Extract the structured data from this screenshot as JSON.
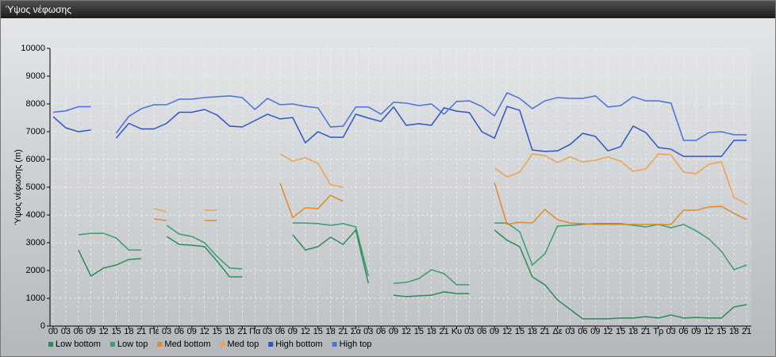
{
  "chart_data": {
    "type": "line",
    "title": "Ύψος νέφωσης",
    "y_label": "Ύψος νέφωσης (m)",
    "categories": [
      "00",
      "03",
      "06",
      "09",
      "12",
      "15",
      "18",
      "21",
      "Πέ",
      "03",
      "06",
      "09",
      "12",
      "15",
      "18",
      "21",
      "Πα",
      "03",
      "06",
      "09",
      "12",
      "15",
      "18",
      "21",
      "Σά",
      "03",
      "06",
      "09",
      "12",
      "15",
      "18",
      "21",
      "Κυ",
      "03",
      "06",
      "09",
      "12",
      "15",
      "18",
      "21",
      "Δε",
      "03",
      "06",
      "09",
      "12",
      "15",
      "18",
      "21",
      "Τρ",
      "03",
      "06",
      "09",
      "12",
      "15",
      "18",
      "21"
    ],
    "ylim": [
      0,
      10000
    ],
    "yticks": [
      0,
      1000,
      2000,
      3000,
      4000,
      5000,
      6000,
      7000,
      8000,
      9000,
      10000
    ],
    "grid": true,
    "series": [
      {
        "name": "Low bottom",
        "color": "#2e8b57",
        "values": [
          null,
          null,
          2740,
          1800,
          2090,
          2200,
          2400,
          2430,
          null,
          3230,
          2940,
          2910,
          2860,
          2340,
          1770,
          1770,
          null,
          null,
          null,
          3290,
          2740,
          2860,
          3200,
          2940,
          3460,
          1540,
          null,
          1110,
          1060,
          1090,
          1110,
          1230,
          1170,
          1170,
          null,
          3460,
          3090,
          2860,
          1770,
          1490,
          940,
          600,
          260,
          260,
          260,
          290,
          290,
          340,
          290,
          400,
          290,
          310,
          290,
          290,
          690,
          770
        ]
      },
      {
        "name": "Low top",
        "color": "#3a9e6a",
        "values": [
          null,
          null,
          3290,
          3340,
          3340,
          3170,
          2740,
          2740,
          null,
          3630,
          3310,
          3230,
          3000,
          2510,
          2090,
          2060,
          null,
          null,
          null,
          3710,
          3710,
          3690,
          3630,
          3690,
          3570,
          1800,
          null,
          1540,
          1570,
          1710,
          2030,
          1890,
          1490,
          1490,
          null,
          3710,
          3710,
          3400,
          2200,
          2600,
          3600,
          3630,
          3660,
          3690,
          3690,
          3690,
          3630,
          3570,
          3660,
          3540,
          3660,
          3430,
          3140,
          2690,
          2030,
          2200
        ]
      },
      {
        "name": "Med bottom",
        "color": "#e08a2a",
        "values": [
          null,
          null,
          null,
          null,
          null,
          null,
          null,
          null,
          3860,
          3800,
          null,
          null,
          3800,
          3800,
          null,
          null,
          null,
          null,
          5140,
          3910,
          4260,
          4230,
          4710,
          4490,
          null,
          null,
          null,
          null,
          null,
          null,
          null,
          null,
          null,
          null,
          null,
          5170,
          3660,
          3740,
          3710,
          4200,
          3830,
          3710,
          3690,
          3660,
          3660,
          3660,
          3660,
          3660,
          3660,
          3660,
          4170,
          4170,
          4290,
          4310,
          4060,
          3830
        ]
      },
      {
        "name": "Med top",
        "color": "#f0a050",
        "values": [
          null,
          null,
          null,
          null,
          null,
          null,
          null,
          null,
          4230,
          4110,
          null,
          null,
          4170,
          4170,
          null,
          null,
          null,
          null,
          6200,
          5940,
          6060,
          5860,
          5090,
          5000,
          null,
          null,
          null,
          null,
          null,
          null,
          null,
          null,
          null,
          null,
          null,
          5690,
          5370,
          5540,
          6200,
          6140,
          5890,
          6090,
          5910,
          5970,
          6090,
          5940,
          5570,
          5660,
          6200,
          6170,
          5540,
          5490,
          5830,
          5910,
          4630,
          4400
        ]
      },
      {
        "name": "High bottom",
        "color": "#2b55c8",
        "values": [
          7540,
          7140,
          7000,
          7060,
          null,
          6770,
          7300,
          7100,
          7100,
          7300,
          7700,
          7700,
          7800,
          7600,
          7200,
          7170,
          7400,
          7630,
          7460,
          7510,
          6600,
          7000,
          6800,
          6800,
          7630,
          7490,
          7370,
          7890,
          7230,
          7290,
          7230,
          7860,
          7740,
          7690,
          7000,
          6770,
          7910,
          7770,
          6340,
          6290,
          6310,
          6540,
          6940,
          6830,
          6310,
          6460,
          7200,
          6970,
          6430,
          6370,
          6110,
          6110,
          6110,
          6110,
          6690,
          6690
        ]
      },
      {
        "name": "High top",
        "color": "#4a6fe0",
        "values": [
          7700,
          7750,
          7900,
          7900,
          null,
          6950,
          7550,
          7830,
          7970,
          7970,
          8170,
          8170,
          8230,
          8260,
          8290,
          8230,
          7800,
          8200,
          7970,
          8000,
          7910,
          7860,
          7170,
          7200,
          7890,
          7890,
          7630,
          8060,
          8030,
          7940,
          8000,
          7630,
          8090,
          8110,
          7910,
          7570,
          8400,
          8200,
          7830,
          8110,
          8230,
          8200,
          8200,
          8290,
          7890,
          7940,
          8260,
          8110,
          8110,
          8030,
          6690,
          6690,
          6970,
          7000,
          6890,
          6890
        ]
      }
    ]
  }
}
